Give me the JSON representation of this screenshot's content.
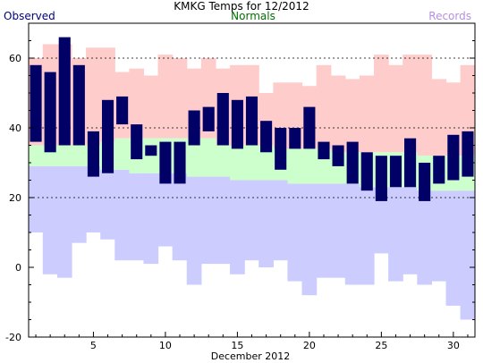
{
  "header": {
    "title": "KMKG Temps for 12/2012",
    "observed_label": "Observed",
    "normals_label": "Normals",
    "records_label": "Records"
  },
  "colors": {
    "observed": "#000066",
    "observed_text": "#000080",
    "normals_band": "#ccffcc",
    "normals_text": "#007000",
    "record_high_band": "#ffcccc",
    "record_low_band": "#ccccff",
    "records_text": "#b58fe0",
    "gridline": "#000000"
  },
  "chart_data": {
    "type": "bar",
    "title": "KMKG Temps for 12/2012",
    "xlabel": "December 2012",
    "ylabel": "",
    "xlim": [
      0.5,
      31.5
    ],
    "ylim": [
      -20,
      70
    ],
    "x_ticks": [
      5,
      10,
      15,
      20,
      25,
      30
    ],
    "y_ticks": [
      -20,
      0,
      20,
      40,
      60
    ],
    "gridlines_y": [
      20,
      40,
      60
    ],
    "days": [
      1,
      2,
      3,
      4,
      5,
      6,
      7,
      8,
      9,
      10,
      11,
      12,
      13,
      14,
      15,
      16,
      17,
      18,
      19,
      20,
      21,
      22,
      23,
      24,
      25,
      26,
      27,
      28,
      29,
      30,
      31
    ],
    "series": [
      {
        "name": "Observed",
        "kind": "range",
        "high": [
          58,
          56,
          66,
          58,
          39,
          48,
          49,
          41,
          35,
          36,
          36,
          45,
          46,
          50,
          48,
          49,
          42,
          40,
          40,
          46,
          36,
          35,
          36,
          33,
          32,
          32,
          37,
          30,
          32,
          38,
          39
        ],
        "low": [
          36,
          33,
          35,
          35,
          26,
          27,
          41,
          31,
          32,
          24,
          24,
          35,
          39,
          35,
          34,
          35,
          33,
          28,
          34,
          34,
          31,
          29,
          24,
          22,
          19,
          23,
          23,
          19,
          24,
          25,
          26
        ]
      },
      {
        "name": "Normals",
        "kind": "band",
        "high": [
          35,
          35,
          35,
          35,
          35,
          36,
          37,
          37,
          37,
          37,
          37,
          37,
          37,
          35,
          35,
          35,
          35,
          34,
          34,
          34,
          34,
          33,
          33,
          33,
          33,
          33,
          33,
          32,
          32,
          32,
          32
        ],
        "low": [
          29,
          29,
          29,
          29,
          29,
          28,
          28,
          27,
          27,
          27,
          27,
          26,
          26,
          26,
          25,
          25,
          25,
          25,
          24,
          24,
          24,
          24,
          24,
          23,
          23,
          23,
          23,
          22,
          22,
          22,
          22
        ]
      },
      {
        "name": "Records",
        "kind": "band-pair",
        "record_high": [
          60,
          64,
          64,
          60,
          63,
          63,
          56,
          57,
          55,
          61,
          60,
          57,
          60,
          57,
          58,
          58,
          50,
          53,
          53,
          52,
          58,
          55,
          54,
          55,
          61,
          58,
          61,
          61,
          54,
          53,
          58
        ],
        "record_low": [
          10,
          -2,
          -3,
          7,
          10,
          8,
          2,
          2,
          1,
          6,
          2,
          -5,
          1,
          1,
          -2,
          2,
          0,
          2,
          -4,
          -8,
          -3,
          -3,
          -5,
          -5,
          4,
          -4,
          -2,
          -5,
          -4,
          -11,
          -15
        ]
      }
    ]
  }
}
